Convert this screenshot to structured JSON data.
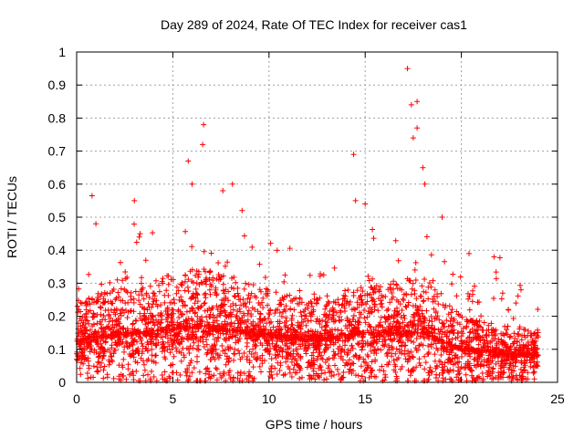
{
  "chart_data": {
    "type": "scatter",
    "title": "Day 289 of 2024, Rate Of TEC Index for receiver cas1",
    "xlabel": "GPS time / hours",
    "ylabel": "ROTI / TECUs",
    "xlim": [
      0,
      25
    ],
    "ylim": [
      0,
      1
    ],
    "grid": true,
    "x_ticks": [
      0,
      5,
      10,
      15,
      20,
      25
    ],
    "y_ticks": [
      0,
      0.1,
      0.2,
      0.3,
      0.4,
      0.5,
      0.6,
      0.7,
      0.8,
      0.9,
      1
    ],
    "x_tick_labels": [
      "0",
      "5",
      "10",
      "15",
      "20",
      "25"
    ],
    "y_tick_labels": [
      "0",
      "0.1",
      "0.2",
      "0.3",
      "0.4",
      "0.5",
      "0.6",
      "0.7",
      "0.8",
      "0.9",
      "1"
    ],
    "marker": "+",
    "color": "#ff0000",
    "series": [
      {
        "name": "ROTI",
        "x_range_hours": [
          0,
          24
        ],
        "profile": [
          {
            "hour": 0,
            "median": 0.13,
            "spread": 0.12
          },
          {
            "hour": 3,
            "median": 0.15,
            "spread": 0.15
          },
          {
            "hour": 6.5,
            "median": 0.17,
            "spread": 0.18
          },
          {
            "hour": 9,
            "median": 0.15,
            "spread": 0.15
          },
          {
            "hour": 12,
            "median": 0.13,
            "spread": 0.12
          },
          {
            "hour": 15,
            "median": 0.15,
            "spread": 0.15
          },
          {
            "hour": 18,
            "median": 0.15,
            "spread": 0.17
          },
          {
            "hour": 20,
            "median": 0.1,
            "spread": 0.1
          },
          {
            "hour": 24,
            "median": 0.08,
            "spread": 0.08
          }
        ],
        "peaks": [
          {
            "x": 0.8,
            "y": 0.565
          },
          {
            "x": 1.0,
            "y": 0.48
          },
          {
            "x": 3.0,
            "y": 0.55
          },
          {
            "x": 3.3,
            "y": 0.45
          },
          {
            "x": 5.8,
            "y": 0.67
          },
          {
            "x": 6.0,
            "y": 0.6
          },
          {
            "x": 6.6,
            "y": 0.78
          },
          {
            "x": 6.55,
            "y": 0.72
          },
          {
            "x": 7.6,
            "y": 0.58
          },
          {
            "x": 8.1,
            "y": 0.6
          },
          {
            "x": 8.6,
            "y": 0.52
          },
          {
            "x": 14.4,
            "y": 0.69
          },
          {
            "x": 14.5,
            "y": 0.55
          },
          {
            "x": 15.0,
            "y": 0.54
          },
          {
            "x": 17.2,
            "y": 0.95
          },
          {
            "x": 17.4,
            "y": 0.84
          },
          {
            "x": 17.7,
            "y": 0.85
          },
          {
            "x": 17.7,
            "y": 0.77
          },
          {
            "x": 17.5,
            "y": 0.74
          },
          {
            "x": 18.0,
            "y": 0.65
          },
          {
            "x": 18.1,
            "y": 0.6
          },
          {
            "x": 19.0,
            "y": 0.5
          },
          {
            "x": 20.4,
            "y": 0.39
          },
          {
            "x": 21.7,
            "y": 0.38
          },
          {
            "x": 23.1,
            "y": 0.28
          }
        ]
      }
    ]
  }
}
